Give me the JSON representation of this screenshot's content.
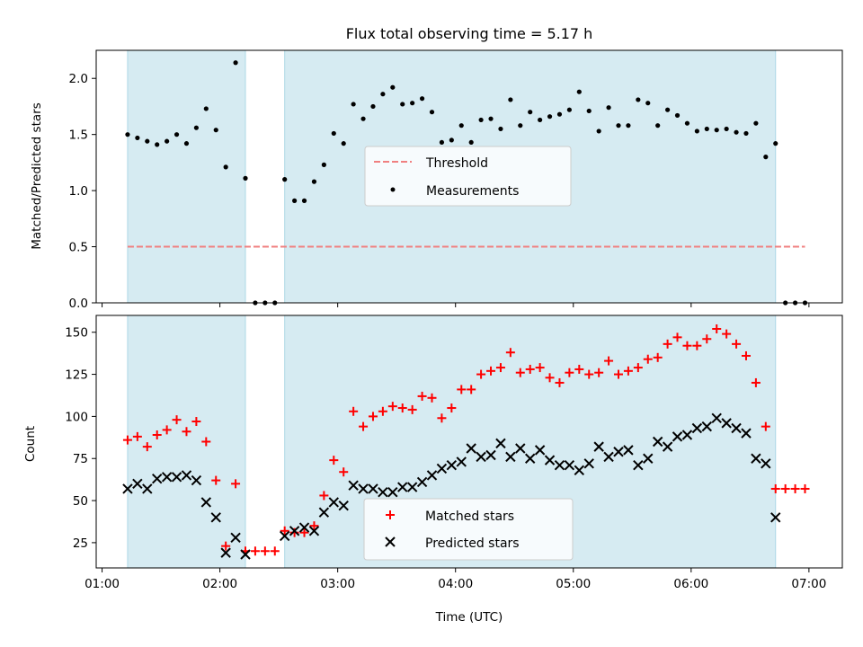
{
  "chart_data": [
    {
      "type": "scatter",
      "title": "Flux total observing time = 5.17 h",
      "ylabel": "Matched/Predicted stars",
      "xlabel": "",
      "xlim": [
        "00:57",
        "07:17"
      ],
      "ylim": [
        0,
        2.25
      ],
      "yticks": [
        "0.0",
        "0.5",
        "1.0",
        "1.5",
        "2.0"
      ],
      "shaded_intervals": [
        [
          "01:13",
          "02:13"
        ],
        [
          "02:33",
          "06:43"
        ]
      ],
      "shade_color": "#add8e6",
      "legend": {
        "placement": "center",
        "entries": [
          "Threshold",
          "Measurements"
        ]
      },
      "series": [
        {
          "name": "Threshold",
          "style": "dashed-line",
          "color": "#f08080",
          "x": [
            "01:13",
            "06:58"
          ],
          "values": [
            0.5,
            0.5
          ]
        },
        {
          "name": "Measurements",
          "style": "dot",
          "color": "#000000",
          "x": [
            "01:13",
            "01:18",
            "01:23",
            "01:28",
            "01:33",
            "01:38",
            "01:43",
            "01:48",
            "01:53",
            "01:58",
            "02:03",
            "02:08",
            "02:13",
            "02:18",
            "02:23",
            "02:28",
            "02:33",
            "02:38",
            "02:43",
            "02:48",
            "02:53",
            "02:58",
            "03:03",
            "03:08",
            "03:13",
            "03:18",
            "03:23",
            "03:28",
            "03:33",
            "03:38",
            "03:43",
            "03:48",
            "03:53",
            "03:58",
            "04:03",
            "04:08",
            "04:13",
            "04:18",
            "04:23",
            "04:28",
            "04:33",
            "04:38",
            "04:43",
            "04:48",
            "04:53",
            "04:58",
            "05:03",
            "05:08",
            "05:13",
            "05:18",
            "05:23",
            "05:28",
            "05:33",
            "05:38",
            "05:43",
            "05:48",
            "05:53",
            "05:58",
            "06:03",
            "06:08",
            "06:13",
            "06:18",
            "06:23",
            "06:28",
            "06:33",
            "06:38",
            "06:43",
            "06:48",
            "06:53",
            "06:58"
          ],
          "values": [
            1.5,
            1.47,
            1.44,
            1.41,
            1.44,
            1.5,
            1.42,
            1.56,
            1.73,
            1.54,
            1.21,
            2.14,
            1.11,
            0.0,
            0.0,
            0.0,
            1.1,
            0.91,
            0.91,
            1.08,
            1.23,
            1.51,
            1.42,
            1.77,
            1.64,
            1.75,
            1.86,
            1.92,
            1.77,
            1.78,
            1.82,
            1.7,
            1.43,
            1.45,
            1.58,
            1.43,
            1.63,
            1.64,
            1.55,
            1.81,
            1.58,
            1.7,
            1.63,
            1.66,
            1.68,
            1.72,
            1.88,
            1.71,
            1.53,
            1.74,
            1.58,
            1.58,
            1.81,
            1.78,
            1.58,
            1.72,
            1.67,
            1.6,
            1.53,
            1.55,
            1.54,
            1.55,
            1.52,
            1.51,
            1.6,
            1.3,
            1.42,
            0.0,
            0.0,
            0.0
          ]
        }
      ]
    },
    {
      "type": "scatter",
      "title": "",
      "ylabel": "Count",
      "xlabel": "Time (UTC)",
      "xlim": [
        "00:57",
        "07:17"
      ],
      "ylim": [
        10,
        160
      ],
      "yticks": [
        "25",
        "50",
        "75",
        "100",
        "125",
        "150"
      ],
      "xticks": [
        "01:00",
        "02:00",
        "03:00",
        "04:00",
        "05:00",
        "06:00",
        "07:00"
      ],
      "shaded_intervals": [
        [
          "01:13",
          "02:13"
        ],
        [
          "02:33",
          "06:43"
        ]
      ],
      "shade_color": "#add8e6",
      "legend": {
        "placement": "bottom-center",
        "entries": [
          "Matched stars",
          "Predicted stars"
        ]
      },
      "series": [
        {
          "name": "Matched stars",
          "marker": "+",
          "color": "#ff0000",
          "x": [
            "01:13",
            "01:18",
            "01:23",
            "01:28",
            "01:33",
            "01:38",
            "01:43",
            "01:48",
            "01:53",
            "01:58",
            "02:03",
            "02:08",
            "02:13",
            "02:18",
            "02:23",
            "02:28",
            "02:33",
            "02:38",
            "02:43",
            "02:48",
            "02:53",
            "02:58",
            "03:03",
            "03:08",
            "03:13",
            "03:18",
            "03:23",
            "03:28",
            "03:33",
            "03:38",
            "03:43",
            "03:48",
            "03:53",
            "03:58",
            "04:03",
            "04:08",
            "04:13",
            "04:18",
            "04:23",
            "04:28",
            "04:33",
            "04:38",
            "04:43",
            "04:48",
            "04:53",
            "04:58",
            "05:03",
            "05:08",
            "05:13",
            "05:18",
            "05:23",
            "05:28",
            "05:33",
            "05:38",
            "05:43",
            "05:48",
            "05:53",
            "05:58",
            "06:03",
            "06:08",
            "06:13",
            "06:18",
            "06:23",
            "06:28",
            "06:33",
            "06:38",
            "06:43",
            "06:48",
            "06:53",
            "06:58"
          ],
          "values": [
            86,
            88,
            82,
            89,
            92,
            98,
            91,
            97,
            85,
            62,
            23,
            60,
            20,
            20,
            20,
            20,
            32,
            31,
            31,
            35,
            53,
            74,
            67,
            103,
            94,
            100,
            103,
            106,
            105,
            104,
            112,
            111,
            99,
            105,
            116,
            116,
            125,
            127,
            129,
            138,
            126,
            128,
            129,
            123,
            120,
            126,
            128,
            125,
            126,
            133,
            125,
            127,
            129,
            134,
            135,
            143,
            147,
            142,
            142,
            146,
            152,
            149,
            143,
            136,
            120,
            94,
            57,
            57,
            57,
            57
          ]
        },
        {
          "name": "Predicted stars",
          "marker": "x",
          "color": "#000000",
          "x": [
            "01:13",
            "01:18",
            "01:23",
            "01:28",
            "01:33",
            "01:38",
            "01:43",
            "01:48",
            "01:53",
            "01:58",
            "02:03",
            "02:08",
            "02:13",
            "02:33",
            "02:38",
            "02:43",
            "02:48",
            "02:53",
            "02:58",
            "03:03",
            "03:08",
            "03:13",
            "03:18",
            "03:23",
            "03:28",
            "03:33",
            "03:38",
            "03:43",
            "03:48",
            "03:53",
            "03:58",
            "04:03",
            "04:08",
            "04:13",
            "04:18",
            "04:23",
            "04:28",
            "04:33",
            "04:38",
            "04:43",
            "04:48",
            "04:53",
            "04:58",
            "05:03",
            "05:08",
            "05:13",
            "05:18",
            "05:23",
            "05:28",
            "05:33",
            "05:38",
            "05:43",
            "05:48",
            "05:53",
            "05:58",
            "06:03",
            "06:08",
            "06:13",
            "06:18",
            "06:23",
            "06:28",
            "06:33",
            "06:38",
            "06:43",
            "06:48"
          ],
          "values": [
            57,
            60,
            57,
            63,
            64,
            64,
            65,
            62,
            49,
            40,
            19,
            28,
            18,
            29,
            32,
            34,
            32,
            43,
            49,
            47,
            59,
            57,
            57,
            55,
            55,
            58,
            58,
            61,
            65,
            69,
            71,
            73,
            81,
            76,
            77,
            84,
            76,
            81,
            75,
            80,
            74,
            71,
            71,
            68,
            72,
            82,
            76,
            79,
            80,
            71,
            75,
            85,
            82,
            88,
            89,
            93,
            94,
            99,
            96,
            93,
            90,
            75,
            72,
            40,
            null
          ]
        }
      ]
    }
  ]
}
